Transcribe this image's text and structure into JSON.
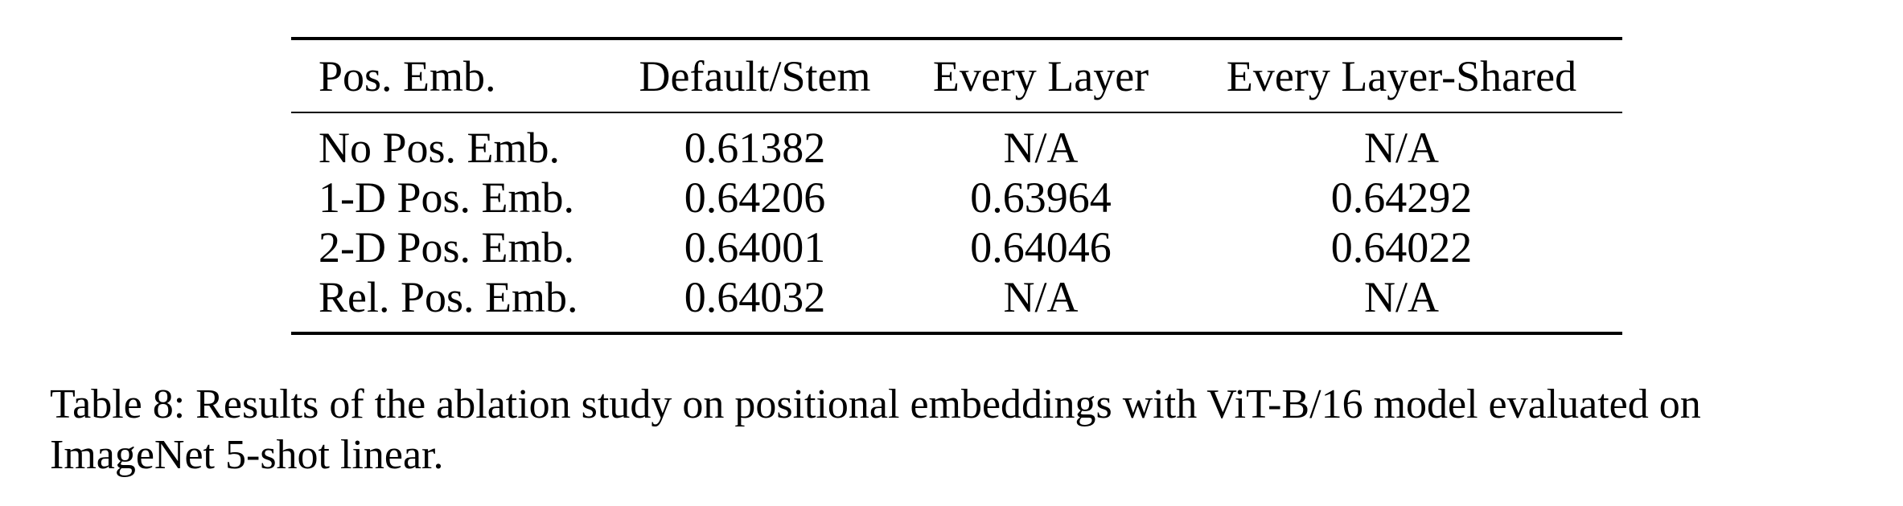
{
  "table": {
    "headers": [
      "Pos. Emb.",
      "Default/Stem",
      "Every Layer",
      "Every Layer-Shared"
    ],
    "rows": [
      [
        "No Pos. Emb.",
        "0.61382",
        "N/A",
        "N/A"
      ],
      [
        "1-D Pos. Emb.",
        "0.64206",
        "0.63964",
        "0.64292"
      ],
      [
        "2-D Pos. Emb.",
        "0.64001",
        "0.64046",
        "0.64022"
      ],
      [
        "Rel. Pos. Emb.",
        "0.64032",
        "N/A",
        "N/A"
      ]
    ]
  },
  "caption": {
    "line1": "Table 8: Results of the ablation study on positional embeddings with ViT-B/16 model evaluated on",
    "line2": "ImageNet 5-shot linear."
  }
}
